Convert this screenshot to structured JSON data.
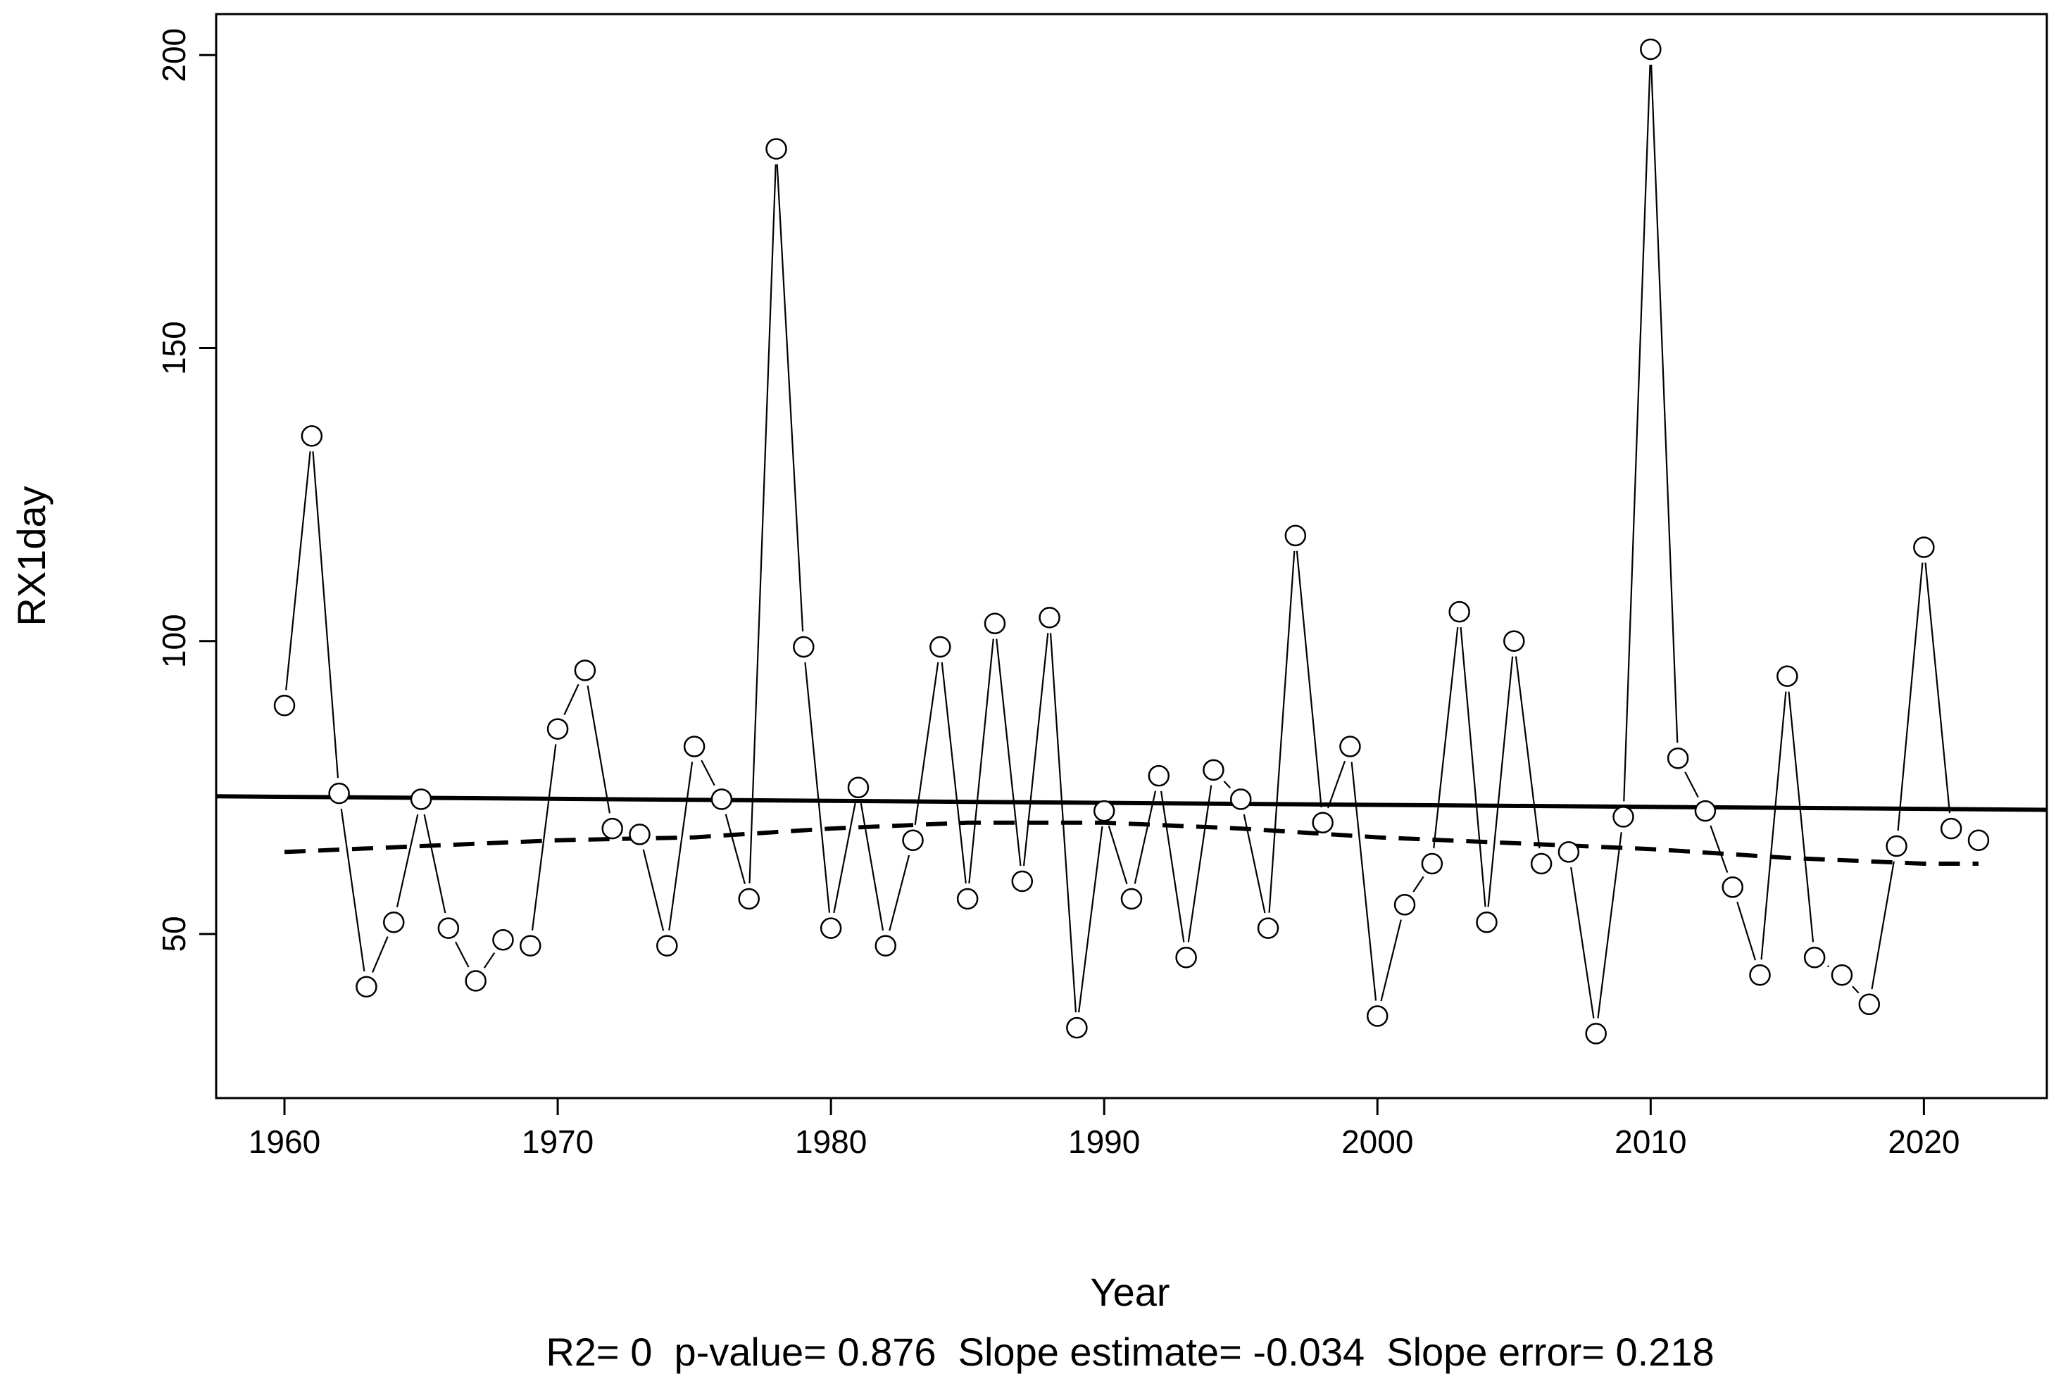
{
  "chart_data": {
    "type": "line",
    "xlabel": "Year",
    "ylabel": "RX1day",
    "xlim": [
      1957.5,
      2024.5
    ],
    "ylim": [
      22,
      207
    ],
    "xticks": [
      1960,
      1970,
      1980,
      1990,
      2000,
      2010,
      2020
    ],
    "yticks": [
      50,
      100,
      150,
      200
    ],
    "stats_line": "R2= 0  p-value= 0.876  Slope estimate= -0.034  Slope error= 0.218",
    "x": [
      1960,
      1961,
      1962,
      1963,
      1964,
      1965,
      1966,
      1967,
      1968,
      1969,
      1970,
      1971,
      1972,
      1973,
      1974,
      1975,
      1976,
      1977,
      1978,
      1979,
      1980,
      1981,
      1982,
      1983,
      1984,
      1985,
      1986,
      1987,
      1988,
      1989,
      1990,
      1991,
      1992,
      1993,
      1994,
      1995,
      1996,
      1997,
      1998,
      1999,
      2000,
      2001,
      2002,
      2003,
      2004,
      2005,
      2006,
      2007,
      2008,
      2009,
      2010,
      2011,
      2012,
      2013,
      2014,
      2015,
      2016,
      2017,
      2018,
      2019,
      2020,
      2021,
      2022
    ],
    "series": [
      {
        "marker": "open-circle",
        "values": [
          89,
          135,
          74,
          41,
          52,
          73,
          51,
          42,
          49,
          48,
          85,
          95,
          68,
          67,
          48,
          82,
          73,
          56,
          184,
          99,
          51,
          75,
          48,
          66,
          99,
          56,
          103,
          59,
          104,
          34,
          71,
          56,
          77,
          46,
          78,
          73,
          51,
          118,
          69,
          82,
          36,
          55,
          62,
          105,
          52,
          100,
          62,
          64,
          33,
          70,
          201,
          80,
          71,
          58,
          43,
          94,
          46,
          43,
          38,
          65,
          116,
          68,
          66
        ]
      },
      {
        "style": "solid",
        "trend": "linear",
        "x": [
          1957.5,
          2024.5
        ],
        "values": [
          73.5,
          71.2
        ]
      },
      {
        "style": "dashed",
        "trend": "smoothed",
        "x": [
          1960,
          1965,
          1970,
          1975,
          1980,
          1985,
          1990,
          1995,
          2000,
          2005,
          2010,
          2015,
          2020,
          2022
        ],
        "values": [
          64,
          65,
          66,
          66.5,
          68,
          69,
          69,
          68,
          66.5,
          65.5,
          64.5,
          63,
          62,
          62
        ]
      }
    ]
  }
}
